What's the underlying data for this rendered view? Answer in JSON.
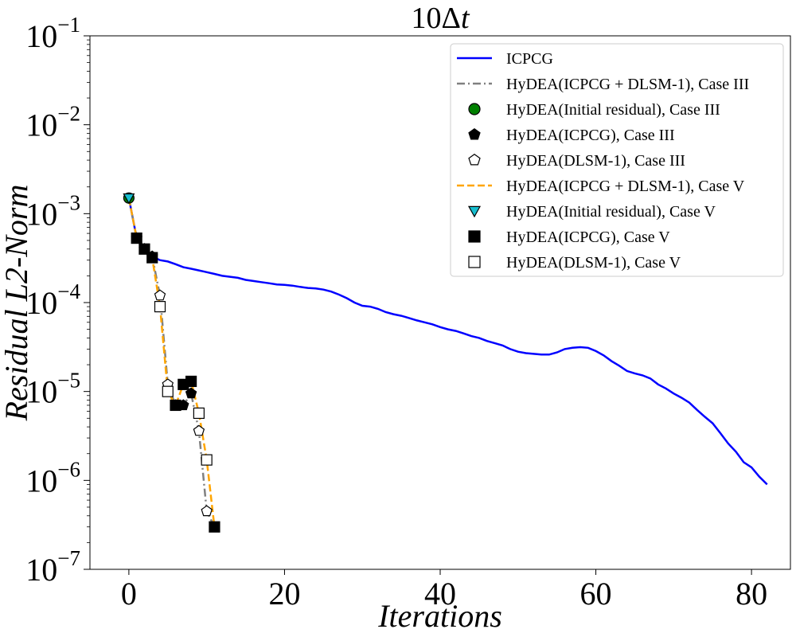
{
  "chart_data": {
    "type": "line",
    "title": "10Δt",
    "xlabel": "Iterations",
    "ylabel": "Residual L2-Norm",
    "xlim": [
      -5,
      85
    ],
    "ylim": [
      1e-07,
      0.1
    ],
    "yscale": "log",
    "grid": false,
    "legend_position": "top-right",
    "xticks": [
      {
        "value": 0,
        "label": "0"
      },
      {
        "value": 20,
        "label": "20"
      },
      {
        "value": 40,
        "label": "40"
      },
      {
        "value": 60,
        "label": "60"
      },
      {
        "value": 80,
        "label": "80"
      }
    ],
    "yticks": [
      {
        "value": 1e-07,
        "base": "10",
        "exp": "−7"
      },
      {
        "value": 1e-06,
        "base": "10",
        "exp": "−6"
      },
      {
        "value": 1e-05,
        "base": "10",
        "exp": "−5"
      },
      {
        "value": 0.0001,
        "base": "10",
        "exp": "−4"
      },
      {
        "value": 0.001,
        "base": "10",
        "exp": "−3"
      },
      {
        "value": 0.01,
        "base": "10",
        "exp": "−2"
      },
      {
        "value": 0.1,
        "base": "10",
        "exp": "−1"
      }
    ],
    "series": [
      {
        "name": "ICPCG",
        "kind": "line",
        "color": "#0000ff",
        "dash": "solid",
        "x": [
          0,
          1,
          2,
          3,
          4,
          5,
          6,
          7,
          8,
          9,
          10,
          11,
          12,
          13,
          14,
          15,
          16,
          17,
          18,
          19,
          20,
          21,
          22,
          23,
          24,
          25,
          26,
          27,
          28,
          29,
          30,
          31,
          32,
          33,
          34,
          35,
          36,
          37,
          38,
          39,
          40,
          41,
          42,
          43,
          44,
          45,
          46,
          47,
          48,
          49,
          50,
          51,
          52,
          53,
          54,
          55,
          56,
          57,
          58,
          59,
          60,
          61,
          62,
          63,
          64,
          65,
          66,
          67,
          68,
          69,
          70,
          71,
          72,
          73,
          74,
          75,
          76,
          77,
          78,
          79,
          80,
          81,
          82
        ],
        "y": [
          0.0015,
          0.00053,
          0.0004,
          0.00033,
          0.0003,
          0.00029,
          0.00027,
          0.00025,
          0.00024,
          0.00023,
          0.00022,
          0.00021,
          0.0002,
          0.000195,
          0.00019,
          0.00018,
          0.000175,
          0.00017,
          0.000165,
          0.00016,
          0.000158,
          0.000155,
          0.00015,
          0.000146,
          0.000144,
          0.00014,
          0.000133,
          0.000123,
          0.000112,
          0.0001,
          9.2e-05,
          9e-05,
          8.5e-05,
          7.8e-05,
          7.4e-05,
          7.1e-05,
          6.7e-05,
          6.3e-05,
          6e-05,
          5.7e-05,
          5.3e-05,
          5e-05,
          4.8e-05,
          4.5e-05,
          4.2e-05,
          4e-05,
          3.7e-05,
          3.5e-05,
          3.3e-05,
          3e-05,
          2.8e-05,
          2.7e-05,
          2.65e-05,
          2.6e-05,
          2.6e-05,
          2.75e-05,
          3e-05,
          3.1e-05,
          3.15e-05,
          3.1e-05,
          2.85e-05,
          2.55e-05,
          2.2e-05,
          1.95e-05,
          1.7e-05,
          1.6e-05,
          1.52e-05,
          1.4e-05,
          1.2e-05,
          1.08e-05,
          9.5e-06,
          8.5e-06,
          7.5e-06,
          6.2e-06,
          5.2e-06,
          4.4e-06,
          3.4e-06,
          2.6e-06,
          2.1e-06,
          1.6e-06,
          1.4e-06,
          1.1e-06,
          9e-07
        ]
      },
      {
        "name": "HyDEA(ICPCG + DLSM-1), Case III",
        "kind": "line",
        "color": "#808080",
        "dash": "dashdot",
        "x": [
          0,
          1,
          2,
          3,
          4,
          5,
          6,
          7,
          8,
          9,
          10,
          11
        ],
        "y": [
          0.0015,
          0.00053,
          0.0004,
          0.00033,
          0.00012,
          1.2e-05,
          7e-06,
          7e-06,
          9.5e-06,
          3.6e-06,
          4.5e-07,
          3e-07
        ]
      },
      {
        "name": "HyDEA(Initial residual), Case III",
        "kind": "marker",
        "marker": "circle",
        "fill": "#008000",
        "stroke": "#000000",
        "x": [
          0
        ],
        "y": [
          0.0015
        ]
      },
      {
        "name": "HyDEA(ICPCG), Case III",
        "kind": "marker",
        "marker": "pentagon",
        "fill": "#000000",
        "stroke": "#000000",
        "x": [
          1,
          2,
          3,
          6,
          7,
          8
        ],
        "y": [
          0.00053,
          0.0004,
          0.00033,
          7e-06,
          7e-06,
          9.5e-06
        ]
      },
      {
        "name": "HyDEA(DLSM-1), Case III",
        "kind": "marker",
        "marker": "pentagon",
        "fill": "#ffffff",
        "stroke": "#000000",
        "x": [
          4,
          5,
          9,
          10
        ],
        "y": [
          0.00012,
          1.2e-05,
          3.6e-06,
          4.5e-07
        ]
      },
      {
        "name": "HyDEA(ICPCG + DLSM-1), Case V",
        "kind": "line",
        "color": "#ffa500",
        "dash": "dashed",
        "x": [
          0,
          1,
          2,
          3,
          4,
          5,
          6,
          7,
          8,
          9,
          10,
          11
        ],
        "y": [
          0.0015,
          0.00053,
          0.0004,
          0.00032,
          9e-05,
          1e-05,
          7e-06,
          1.2e-05,
          1.3e-05,
          5.7e-06,
          1.7e-06,
          3e-07
        ]
      },
      {
        "name": "HyDEA(Initial residual), Case V",
        "kind": "marker",
        "marker": "triangle-down",
        "fill": "#17becf",
        "stroke": "#000000",
        "x": [
          0
        ],
        "y": [
          0.0015
        ]
      },
      {
        "name": "HyDEA(ICPCG), Case V",
        "kind": "marker",
        "marker": "square",
        "fill": "#000000",
        "stroke": "#000000",
        "x": [
          1,
          2,
          3,
          6,
          7,
          8,
          11
        ],
        "y": [
          0.00053,
          0.0004,
          0.00032,
          7e-06,
          1.2e-05,
          1.3e-05,
          3e-07
        ]
      },
      {
        "name": "HyDEA(DLSM-1), Case V",
        "kind": "marker",
        "marker": "square",
        "fill": "#ffffff",
        "stroke": "#000000",
        "x": [
          4,
          5,
          9,
          10
        ],
        "y": [
          9e-05,
          1e-05,
          5.7e-06,
          1.7e-06
        ]
      }
    ],
    "legend_order": [
      0,
      1,
      2,
      3,
      4,
      5,
      6,
      7,
      8
    ]
  }
}
